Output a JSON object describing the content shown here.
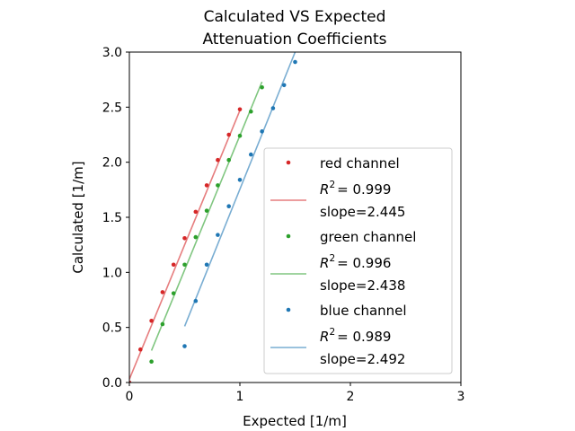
{
  "chart_data": {
    "type": "scatter",
    "title_lines": [
      "Calculated VS Expected",
      "Attenuation Coefficients"
    ],
    "xlabel": "Expected [1/m]",
    "ylabel": "Calculated [1/m]",
    "xlim": [
      0,
      3
    ],
    "ylim": [
      0,
      3
    ],
    "xticks": [
      0,
      1,
      2,
      3
    ],
    "xtick_labels": [
      "0",
      "1",
      "2",
      "3"
    ],
    "yticks": [
      0,
      0.5,
      1,
      1.5,
      2,
      2.5,
      3
    ],
    "ytick_labels": [
      "0.0",
      "0.5",
      "1.0",
      "1.5",
      "2.0",
      "2.5",
      "3.0"
    ],
    "grid": false,
    "legend_position": "lower-right",
    "series": [
      {
        "name": "red channel",
        "color": "#d62728",
        "points": [
          [
            0.0,
            0.0
          ],
          [
            0.1,
            0.3
          ],
          [
            0.2,
            0.56
          ],
          [
            0.3,
            0.82
          ],
          [
            0.4,
            1.07
          ],
          [
            0.5,
            1.31
          ],
          [
            0.6,
            1.55
          ],
          [
            0.7,
            1.79
          ],
          [
            0.8,
            2.02
          ],
          [
            0.9,
            2.25
          ],
          [
            1.0,
            2.48
          ]
        ],
        "fit": {
          "x": [
            0.0,
            1.0
          ],
          "y": [
            0.03,
            2.47
          ]
        },
        "r2_label": "R",
        "r2_value": "= 0.999",
        "slope_label": "slope=2.445"
      },
      {
        "name": "green channel",
        "color": "#2ca02c",
        "points": [
          [
            0.2,
            0.19
          ],
          [
            0.3,
            0.53
          ],
          [
            0.4,
            0.81
          ],
          [
            0.5,
            1.07
          ],
          [
            0.6,
            1.32
          ],
          [
            0.7,
            1.56
          ],
          [
            0.8,
            1.79
          ],
          [
            0.9,
            2.02
          ],
          [
            1.0,
            2.24
          ],
          [
            1.1,
            2.46
          ],
          [
            1.2,
            2.68
          ]
        ],
        "fit": {
          "x": [
            0.2,
            1.2
          ],
          "y": [
            0.29,
            2.73
          ]
        },
        "r2_label": "R",
        "r2_value": "= 0.996",
        "slope_label": "slope=2.438"
      },
      {
        "name": "blue channel",
        "color": "#1f77b4",
        "points": [
          [
            0.5,
            0.33
          ],
          [
            0.6,
            0.74
          ],
          [
            0.7,
            1.07
          ],
          [
            0.8,
            1.34
          ],
          [
            0.9,
            1.6
          ],
          [
            1.0,
            1.84
          ],
          [
            1.1,
            2.07
          ],
          [
            1.2,
            2.28
          ],
          [
            1.3,
            2.49
          ],
          [
            1.4,
            2.7
          ],
          [
            1.5,
            2.91
          ]
        ],
        "fit": {
          "x": [
            0.5,
            1.5
          ],
          "y": [
            0.51,
            3.0
          ]
        },
        "r2_label": "R",
        "r2_value": "=  0.989",
        "slope_label": "slope=2.492"
      }
    ]
  }
}
